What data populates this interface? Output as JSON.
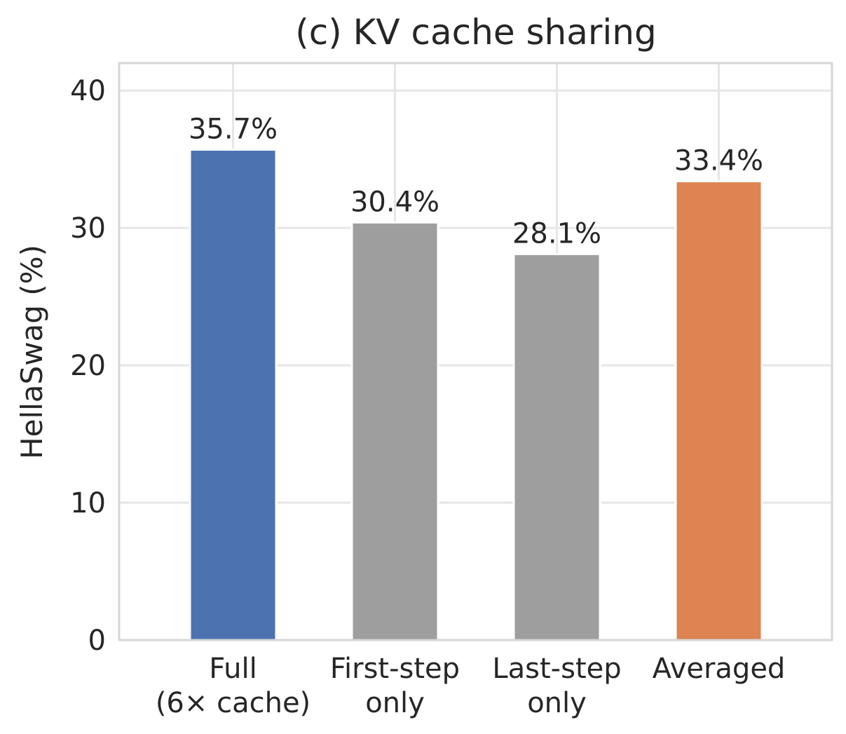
{
  "chart_data": {
    "type": "bar",
    "title": "(c) KV cache sharing",
    "xlabel": "",
    "ylabel": "HellaSwag (%)",
    "ylim": [
      0,
      42
    ],
    "yticks": [
      0,
      10,
      20,
      30,
      40
    ],
    "grid": true,
    "categories": [
      [
        "Full",
        "(6× cache)"
      ],
      [
        "First-step",
        "only"
      ],
      [
        "Last-step",
        "only"
      ],
      [
        "Averaged"
      ]
    ],
    "values": [
      35.7,
      30.4,
      28.1,
      33.4
    ],
    "data_labels": [
      "35.7%",
      "30.4%",
      "28.1%",
      "33.4%"
    ],
    "colors": [
      "#4c72b0",
      "#9e9e9e",
      "#9e9e9e",
      "#dd8452"
    ]
  }
}
